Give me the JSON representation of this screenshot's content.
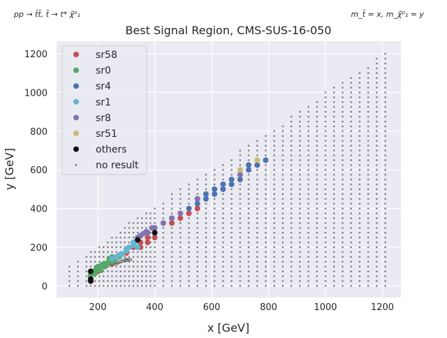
{
  "header": {
    "left_note": "pp → t̃t̃, t̃ → t* χ̃⁰₁",
    "right_note": "m_t̃ = x, m_χ̃⁰₁ = y"
  },
  "chart_data": {
    "type": "scatter",
    "title": "Best Signal Region, CMS-SUS-16-050",
    "xlabel": "x [GeV]",
    "ylabel": "y [GeV]",
    "xlim": [
      55,
      1265
    ],
    "ylim": [
      -60,
      1265
    ],
    "xticks": [
      200,
      400,
      600,
      800,
      1000,
      1200
    ],
    "yticks": [
      0,
      200,
      400,
      600,
      800,
      1000,
      1200
    ],
    "grid": true,
    "background": "#eaeaf2",
    "legend_position": "top-left",
    "series": [
      {
        "name": "sr58",
        "color": "#c44e52",
        "points": [
          [
            175,
            50
          ],
          [
            200,
            75
          ],
          [
            225,
            100
          ],
          [
            250,
            120
          ],
          [
            275,
            150
          ],
          [
            300,
            170
          ],
          [
            325,
            200
          ],
          [
            350,
            200
          ],
          [
            350,
            225
          ],
          [
            375,
            225
          ],
          [
            375,
            250
          ],
          [
            400,
            250
          ],
          [
            460,
            325
          ],
          [
            490,
            350
          ],
          [
            520,
            375
          ],
          [
            550,
            400
          ]
        ]
      },
      {
        "name": "sr0",
        "color": "#55a868",
        "points": [
          [
            175,
            50
          ],
          [
            175,
            60
          ],
          [
            175,
            75
          ],
          [
            190,
            65
          ],
          [
            190,
            80
          ],
          [
            200,
            90
          ],
          [
            200,
            100
          ],
          [
            210,
            80
          ],
          [
            210,
            95
          ],
          [
            215,
            110
          ],
          [
            225,
            100
          ],
          [
            225,
            115
          ],
          [
            235,
            120
          ],
          [
            240,
            140
          ],
          [
            250,
            125
          ],
          [
            250,
            150
          ],
          [
            260,
            135
          ],
          [
            275,
            150
          ]
        ]
      },
      {
        "name": "sr4",
        "color": "#4c72b0",
        "points": [
          [
            460,
            350
          ],
          [
            520,
            400
          ],
          [
            550,
            425
          ],
          [
            550,
            450
          ],
          [
            580,
            450
          ],
          [
            580,
            475
          ],
          [
            610,
            475
          ],
          [
            610,
            500
          ],
          [
            640,
            500
          ],
          [
            640,
            525
          ],
          [
            670,
            525
          ],
          [
            670,
            550
          ],
          [
            700,
            550
          ],
          [
            700,
            575
          ],
          [
            730,
            600
          ],
          [
            730,
            625
          ],
          [
            760,
            625
          ],
          [
            790,
            650
          ]
        ]
      },
      {
        "name": "sr1",
        "color": "#64b5cd",
        "points": [
          [
            250,
            140
          ],
          [
            265,
            150
          ],
          [
            275,
            160
          ],
          [
            285,
            165
          ],
          [
            300,
            180
          ],
          [
            300,
            190
          ],
          [
            310,
            200
          ],
          [
            325,
            210
          ],
          [
            325,
            225
          ],
          [
            335,
            230
          ],
          [
            340,
            200
          ]
        ]
      },
      {
        "name": "sr8",
        "color": "#8172b2",
        "points": [
          [
            340,
            250
          ],
          [
            350,
            260
          ],
          [
            360,
            270
          ],
          [
            370,
            280
          ],
          [
            375,
            275
          ],
          [
            390,
            300
          ],
          [
            400,
            300
          ],
          [
            430,
            325
          ],
          [
            460,
            350
          ],
          [
            490,
            375
          ],
          [
            550,
            450
          ],
          [
            700,
            575
          ]
        ]
      },
      {
        "name": "sr51",
        "color": "#ccb974",
        "points": [
          [
            700,
            600
          ],
          [
            760,
            650
          ]
        ]
      },
      {
        "name": "others",
        "color": "#111111",
        "points": [
          [
            175,
            25
          ],
          [
            175,
            35
          ],
          [
            175,
            75
          ],
          [
            340,
            238
          ],
          [
            400,
            275
          ]
        ]
      }
    ],
    "no_result": {
      "name": "no result",
      "color": "#7f7f7f",
      "columns": [
        {
          "x": 100,
          "ymax": 100
        },
        {
          "x": 130,
          "ymax": 125
        },
        {
          "x": 160,
          "ymax": 150
        },
        {
          "x": 175,
          "ymax": 175
        },
        {
          "x": 190,
          "ymax": 175
        },
        {
          "x": 205,
          "ymax": 200
        },
        {
          "x": 220,
          "ymax": 200
        },
        {
          "x": 235,
          "ymax": 225
        },
        {
          "x": 250,
          "ymax": 250
        },
        {
          "x": 265,
          "ymax": 250
        },
        {
          "x": 280,
          "ymax": 275
        },
        {
          "x": 295,
          "ymax": 300
        },
        {
          "x": 310,
          "ymax": 325
        },
        {
          "x": 325,
          "ymax": 325
        },
        {
          "x": 340,
          "ymax": 350
        },
        {
          "x": 355,
          "ymax": 350
        },
        {
          "x": 370,
          "ymax": 375
        },
        {
          "x": 385,
          "ymax": 375
        },
        {
          "x": 400,
          "ymax": 400
        },
        {
          "x": 430,
          "ymax": 425
        },
        {
          "x": 460,
          "ymax": 475
        },
        {
          "x": 490,
          "ymax": 500
        },
        {
          "x": 520,
          "ymax": 525
        },
        {
          "x": 550,
          "ymax": 550
        },
        {
          "x": 580,
          "ymax": 575
        },
        {
          "x": 610,
          "ymax": 600
        },
        {
          "x": 640,
          "ymax": 625
        },
        {
          "x": 670,
          "ymax": 650
        },
        {
          "x": 700,
          "ymax": 700
        },
        {
          "x": 730,
          "ymax": 725
        },
        {
          "x": 760,
          "ymax": 750
        },
        {
          "x": 790,
          "ymax": 775
        },
        {
          "x": 820,
          "ymax": 800
        },
        {
          "x": 850,
          "ymax": 825
        },
        {
          "x": 880,
          "ymax": 875
        },
        {
          "x": 910,
          "ymax": 900
        },
        {
          "x": 940,
          "ymax": 925
        },
        {
          "x": 970,
          "ymax": 950
        },
        {
          "x": 1000,
          "ymax": 1000
        },
        {
          "x": 1030,
          "ymax": 1025
        },
        {
          "x": 1060,
          "ymax": 1050
        },
        {
          "x": 1090,
          "ymax": 1075
        },
        {
          "x": 1120,
          "ymax": 1100
        },
        {
          "x": 1150,
          "ymax": 1125
        },
        {
          "x": 1180,
          "ymax": 1175
        },
        {
          "x": 1210,
          "ymax": 1200
        }
      ]
    },
    "contour": [
      [
        315,
        137
      ],
      [
        300,
        140
      ],
      [
        275,
        125
      ],
      [
        250,
        115
      ],
      [
        225,
        112
      ],
      [
        200,
        108
      ],
      [
        190,
        100
      ],
      [
        195,
        95
      ],
      [
        220,
        100
      ],
      [
        250,
        107
      ],
      [
        270,
        115
      ],
      [
        290,
        128
      ],
      [
        305,
        130
      ],
      [
        318,
        135
      ]
    ]
  }
}
